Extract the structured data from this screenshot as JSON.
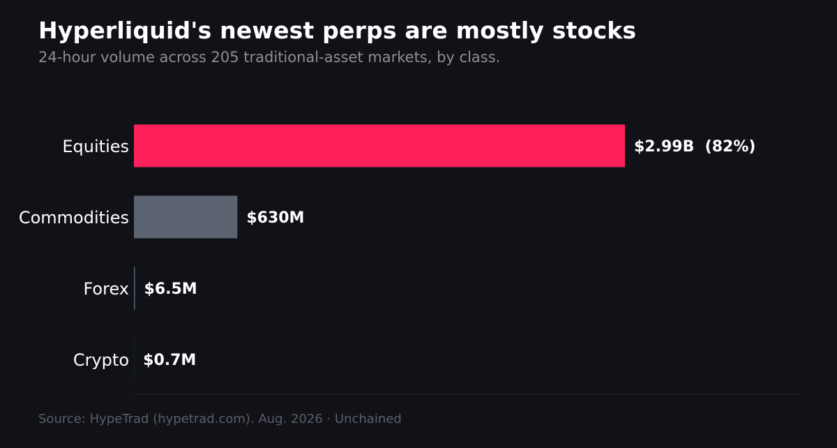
{
  "title": "Hyperliquid's newest perps are mostly stocks",
  "subtitle": "24-hour volume across 205 traditional-asset markets, by class.",
  "source": "Source: HypeTrad (hypetrad.com). Aug. 2026 · Unchained",
  "colors": {
    "background": "#111218",
    "equities": "#ff1f5b",
    "commodities": "#5b6270",
    "forex": "#5b6270",
    "crypto": "#5b6270",
    "baseline": "#2a2c33"
  },
  "chart_data": {
    "type": "bar",
    "orientation": "horizontal",
    "title": "Hyperliquid's newest perps are mostly stocks",
    "subtitle": "24-hour volume across 205 traditional-asset markets, by class.",
    "unit": "USD",
    "categories": [
      "Equities",
      "Commodities",
      "Forex",
      "Crypto"
    ],
    "values": [
      2990000000,
      630000000,
      6500000,
      700000
    ],
    "value_labels": [
      "$2.99B  (82%)",
      "$630M",
      "$6.5M",
      "$0.7M"
    ],
    "xlim": [
      0,
      2990000000
    ],
    "grid": false,
    "legend": "none"
  }
}
